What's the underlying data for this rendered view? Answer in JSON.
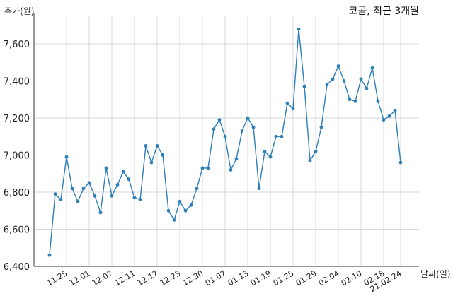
{
  "chart_data": {
    "type": "line",
    "title": "코콤, 최근 3개월",
    "ylabel": "주가(원)",
    "xlabel": "날짜(일)",
    "ylim": [
      6400,
      7800
    ],
    "yticks": [
      6400,
      6600,
      6800,
      7000,
      7200,
      7400,
      7600
    ],
    "ytick_labels": [
      "6,400",
      "6,600",
      "6,800",
      "7,000",
      "7,200",
      "7,400",
      "7,600"
    ],
    "xtick_labels": [
      "11.25",
      "12.01",
      "12.07",
      "12.11",
      "12.17",
      "12.23",
      "12.30",
      "01.07",
      "01.13",
      "01.19",
      "01.25",
      "01.29",
      "02.04",
      "02.10",
      "02.18",
      "21.02.24"
    ],
    "xtick_index": [
      3,
      7,
      11,
      15,
      19,
      23,
      27,
      31,
      35,
      39,
      43,
      47,
      51,
      55,
      59,
      62
    ],
    "grid": true,
    "color": "#2f7fb8",
    "series": [
      {
        "values": [
          6460,
          6790,
          6760,
          6990,
          6820,
          6750,
          6820,
          6850,
          6780,
          6690,
          6930,
          6780,
          6840,
          6910,
          6870,
          6770,
          6760,
          7050,
          6960,
          7050,
          7000,
          6700,
          6650,
          6750,
          6700,
          6730,
          6820,
          6930,
          6930,
          7140,
          7190,
          7100,
          6920,
          6980,
          7130,
          7200,
          7150,
          6820,
          7020,
          6990,
          7100,
          7100,
          7280,
          7250,
          7680,
          7370,
          6970,
          7020,
          7150,
          7380,
          7410,
          7480,
          7400,
          7300,
          7290,
          7410,
          7360,
          7470,
          7290,
          7190,
          7210,
          7240,
          6960
        ]
      }
    ]
  }
}
